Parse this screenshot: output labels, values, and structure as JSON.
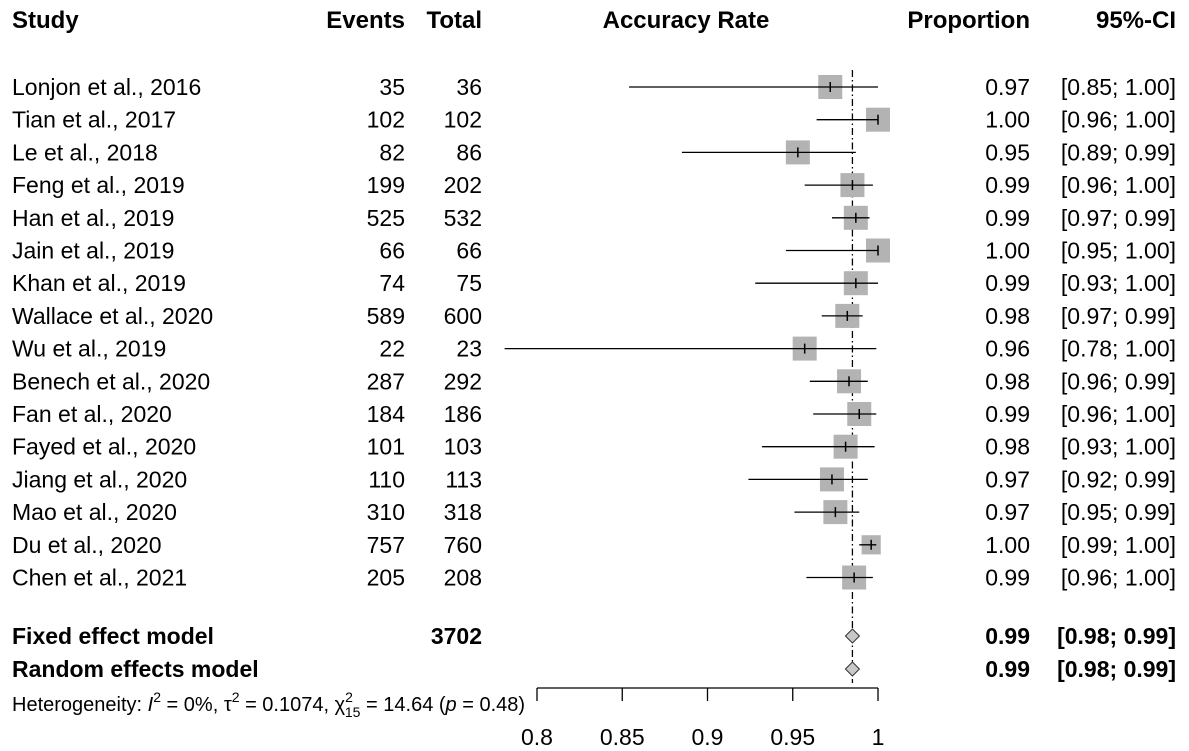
{
  "chart_data": {
    "type": "forest",
    "headers": {
      "study": "Study",
      "events": "Events",
      "total": "Total",
      "plot": "Accuracy Rate",
      "proportion": "Proportion",
      "ci": "95%-CI"
    },
    "studies": [
      {
        "name": "Lonjon et al., 2016",
        "events": "35",
        "total": "36",
        "prop": "0.97",
        "ci_text": "[0.85; 1.00]",
        "est": 0.972,
        "lo": 0.854,
        "hi": 1.0,
        "weight": 1.0
      },
      {
        "name": "Tian et al., 2017",
        "events": "102",
        "total": "102",
        "prop": "1.00",
        "ci_text": "[0.96; 1.00]",
        "est": 1.0,
        "lo": 0.964,
        "hi": 1.0,
        "weight": 1.0
      },
      {
        "name": "Le et al., 2018",
        "events": "82",
        "total": "86",
        "prop": "0.95",
        "ci_text": "[0.89; 0.99]",
        "est": 0.953,
        "lo": 0.885,
        "hi": 0.987,
        "weight": 1.0
      },
      {
        "name": "Feng et al., 2019",
        "events": "199",
        "total": "202",
        "prop": "0.99",
        "ci_text": "[0.96; 1.00]",
        "est": 0.985,
        "lo": 0.957,
        "hi": 0.997,
        "weight": 1.0
      },
      {
        "name": "Han et al., 2019",
        "events": "525",
        "total": "532",
        "prop": "0.99",
        "ci_text": "[0.97; 0.99]",
        "est": 0.987,
        "lo": 0.973,
        "hi": 0.995,
        "weight": 1.0
      },
      {
        "name": "Jain et al., 2019",
        "events": "66",
        "total": "66",
        "prop": "1.00",
        "ci_text": "[0.95; 1.00]",
        "est": 1.0,
        "lo": 0.946,
        "hi": 1.0,
        "weight": 1.0
      },
      {
        "name": "Khan et al., 2019",
        "events": "74",
        "total": "75",
        "prop": "0.99",
        "ci_text": "[0.93; 1.00]",
        "est": 0.987,
        "lo": 0.928,
        "hi": 1.0,
        "weight": 1.0
      },
      {
        "name": "Wallace et al., 2020",
        "events": "589",
        "total": "600",
        "prop": "0.98",
        "ci_text": "[0.97; 0.99]",
        "est": 0.982,
        "lo": 0.967,
        "hi": 0.991,
        "weight": 1.0
      },
      {
        "name": "Wu et al., 2019",
        "events": "22",
        "total": "23",
        "prop": "0.96",
        "ci_text": "[0.78; 1.00]",
        "est": 0.957,
        "lo": 0.781,
        "hi": 0.999,
        "weight": 1.0
      },
      {
        "name": "Benech et al., 2020",
        "events": "287",
        "total": "292",
        "prop": "0.98",
        "ci_text": "[0.96; 0.99]",
        "est": 0.983,
        "lo": 0.96,
        "hi": 0.994,
        "weight": 1.0
      },
      {
        "name": "Fan et al., 2020",
        "events": "184",
        "total": "186",
        "prop": "0.99",
        "ci_text": "[0.96; 1.00]",
        "est": 0.989,
        "lo": 0.962,
        "hi": 0.999,
        "weight": 1.0
      },
      {
        "name": "Fayed et al., 2020",
        "events": "101",
        "total": "103",
        "prop": "0.98",
        "ci_text": "[0.93; 1.00]",
        "est": 0.981,
        "lo": 0.932,
        "hi": 0.998,
        "weight": 1.0
      },
      {
        "name": "Jiang et al., 2020",
        "events": "110",
        "total": "113",
        "prop": "0.97",
        "ci_text": "[0.92; 0.99]",
        "est": 0.973,
        "lo": 0.924,
        "hi": 0.994,
        "weight": 1.0
      },
      {
        "name": "Mao et al., 2020",
        "events": "310",
        "total": "318",
        "prop": "0.97",
        "ci_text": "[0.95; 0.99]",
        "est": 0.975,
        "lo": 0.951,
        "hi": 0.989,
        "weight": 1.0
      },
      {
        "name": "Du et al., 2020",
        "events": "757",
        "total": "760",
        "prop": "1.00",
        "ci_text": "[0.99; 1.00]",
        "est": 0.996,
        "lo": 0.989,
        "hi": 0.999,
        "weight": 0.8
      },
      {
        "name": "Chen et al., 2021",
        "events": "205",
        "total": "208",
        "prop": "0.99",
        "ci_text": "[0.96; 1.00]",
        "est": 0.986,
        "lo": 0.958,
        "hi": 0.997,
        "weight": 1.0
      }
    ],
    "summaries": [
      {
        "name": "Fixed effect model",
        "total": "3702",
        "prop": "0.99",
        "ci_text": "[0.98; 0.99]",
        "est": 0.985,
        "lo": 0.981,
        "hi": 0.989
      },
      {
        "name": "Random effects model",
        "total": "",
        "prop": "0.99",
        "ci_text": "[0.98; 0.99]",
        "est": 0.985,
        "lo": 0.981,
        "hi": 0.989
      }
    ],
    "heterogeneity": {
      "prefix": "Heterogeneity: ",
      "i2_symbol": "I",
      "i2_value": " = 0%, ",
      "tau_symbol": "τ",
      "tau_value": " = 0.1074, ",
      "chi_symbol": "χ",
      "chi_df": "15",
      "chi_value": " = 14.64 (",
      "p_symbol": "p",
      "p_value": " = 0.48)"
    },
    "reference_line": 0.985,
    "xlim": [
      0.8,
      1.0
    ],
    "ticks": [
      {
        "value": 0.8,
        "label": "0.8"
      },
      {
        "value": 0.85,
        "label": "0.85"
      },
      {
        "value": 0.9,
        "label": "0.9"
      },
      {
        "value": 0.95,
        "label": "0.95"
      },
      {
        "value": 1.0,
        "label": "1"
      }
    ],
    "colors": {
      "box": "#b3b3b3",
      "diamond": "#c8c8c8",
      "line": "#000000"
    }
  }
}
